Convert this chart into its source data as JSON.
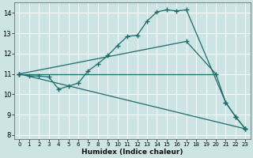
{
  "xlabel": "Humidex (Indice chaleur)",
  "xlim": [
    -0.5,
    23.5
  ],
  "ylim": [
    7.8,
    14.5
  ],
  "xticks": [
    0,
    1,
    2,
    3,
    4,
    5,
    6,
    7,
    8,
    9,
    10,
    11,
    12,
    13,
    14,
    15,
    16,
    17,
    18,
    19,
    20,
    21,
    22,
    23
  ],
  "yticks": [
    8,
    9,
    10,
    11,
    12,
    13,
    14
  ],
  "bg_color": "#cde4e4",
  "grid_color": "#ffffff",
  "line_color": "#1a6b6b",
  "line1_x": [
    0,
    1,
    2,
    3,
    4,
    5,
    6,
    7,
    8,
    9,
    10,
    11,
    12,
    13,
    14,
    15,
    16,
    17,
    21,
    22,
    23
  ],
  "line1_y": [
    11,
    10.9,
    10.9,
    10.85,
    10.25,
    10.4,
    10.55,
    11.15,
    11.5,
    11.9,
    12.4,
    12.85,
    12.9,
    13.6,
    14.05,
    14.15,
    14.1,
    14.15,
    9.6,
    8.9,
    8.3
  ],
  "line2_x": [
    0,
    17,
    20,
    21,
    22,
    23
  ],
  "line2_y": [
    11,
    12.6,
    11.0,
    9.6,
    8.9,
    8.3
  ],
  "line3_x": [
    0,
    20
  ],
  "line3_y": [
    11,
    11.0
  ],
  "line4_x": [
    0,
    23
  ],
  "line4_y": [
    11,
    8.3
  ]
}
